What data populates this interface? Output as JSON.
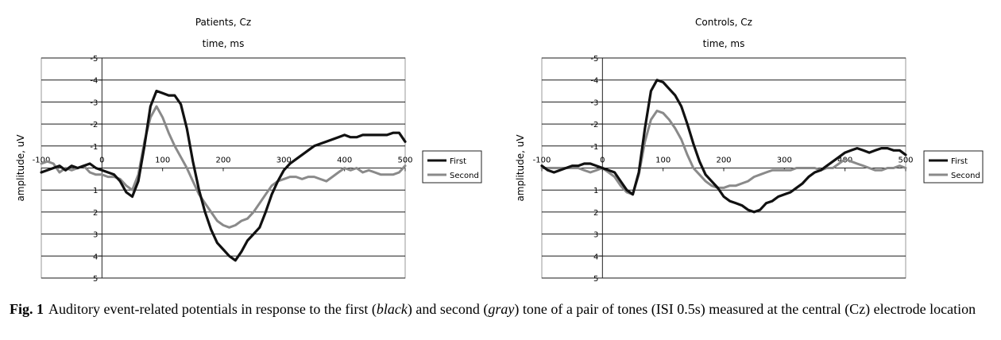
{
  "chart_data": [
    {
      "type": "line",
      "title": "Patients, Cz",
      "xlabel": "time, ms",
      "ylabel": "amplitude, uV",
      "xlim": [
        -100,
        500
      ],
      "ylim": [
        -5,
        5
      ],
      "y_inverted": true,
      "x_ticks": [
        -100,
        0,
        100,
        200,
        300,
        400,
        500
      ],
      "y_ticks": [
        -5,
        -4,
        -3,
        -2,
        -1,
        0,
        1,
        2,
        3,
        4,
        5
      ],
      "x_tick_labels": [
        "-100",
        "0",
        "100",
        "200",
        "300",
        "400",
        "500"
      ],
      "y_tick_labels": [
        "-5",
        "-4",
        "-3",
        "-2",
        "-1",
        "0",
        "1",
        "2",
        "3",
        "4",
        "5"
      ],
      "grid": "horizontal",
      "legend_position": "right",
      "series": [
        {
          "name": "First",
          "color": "#111111",
          "x": [
            -100,
            -90,
            -80,
            -70,
            -60,
            -50,
            -40,
            -30,
            -20,
            -10,
            0,
            10,
            20,
            30,
            40,
            50,
            60,
            70,
            80,
            90,
            100,
            110,
            120,
            130,
            140,
            150,
            160,
            170,
            180,
            190,
            200,
            210,
            220,
            230,
            240,
            250,
            260,
            270,
            280,
            290,
            300,
            310,
            320,
            330,
            340,
            350,
            360,
            370,
            380,
            390,
            400,
            410,
            420,
            430,
            440,
            450,
            460,
            470,
            480,
            490,
            500
          ],
          "y": [
            0.2,
            0.1,
            0,
            -0.1,
            0.1,
            -0.1,
            0,
            -0.1,
            -0.2,
            0,
            0.1,
            0.2,
            0.3,
            0.6,
            1.1,
            1.3,
            0.6,
            -1.0,
            -2.8,
            -3.5,
            -3.4,
            -3.3,
            -3.3,
            -2.9,
            -1.8,
            -0.3,
            1.0,
            2.0,
            2.8,
            3.4,
            3.7,
            4.0,
            4.2,
            3.8,
            3.3,
            3.0,
            2.7,
            2.0,
            1.2,
            0.6,
            0.1,
            -0.2,
            -0.4,
            -0.6,
            -0.8,
            -1.0,
            -1.1,
            -1.2,
            -1.3,
            -1.4,
            -1.5,
            -1.4,
            -1.4,
            -1.5,
            -1.5,
            -1.5,
            -1.5,
            -1.5,
            -1.6,
            -1.6,
            -1.2
          ]
        },
        {
          "name": "Second",
          "color": "#8a8a8a",
          "x": [
            -100,
            -90,
            -80,
            -70,
            -60,
            -50,
            -40,
            -30,
            -20,
            -10,
            0,
            10,
            20,
            30,
            40,
            50,
            60,
            70,
            80,
            90,
            100,
            110,
            120,
            130,
            140,
            150,
            160,
            170,
            180,
            190,
            200,
            210,
            220,
            230,
            240,
            250,
            260,
            270,
            280,
            290,
            300,
            310,
            320,
            330,
            340,
            350,
            360,
            370,
            380,
            390,
            400,
            410,
            420,
            430,
            440,
            450,
            460,
            470,
            480,
            490,
            500
          ],
          "y": [
            -0.2,
            -0.3,
            -0.2,
            0.2,
            0,
            0.1,
            0,
            -0.1,
            0.2,
            0.3,
            0.3,
            0.4,
            0.4,
            0.5,
            0.8,
            1.0,
            0.3,
            -1.2,
            -2.3,
            -2.8,
            -2.3,
            -1.6,
            -1.0,
            -0.5,
            0,
            0.6,
            1.2,
            1.6,
            2.0,
            2.4,
            2.6,
            2.7,
            2.6,
            2.4,
            2.3,
            2.0,
            1.6,
            1.2,
            0.8,
            0.6,
            0.5,
            0.4,
            0.4,
            0.5,
            0.4,
            0.4,
            0.5,
            0.6,
            0.4,
            0.2,
            0,
            0.1,
            0,
            0.2,
            0.1,
            0.2,
            0.3,
            0.3,
            0.3,
            0.2,
            -0.1
          ]
        }
      ]
    },
    {
      "type": "line",
      "title": "Controls, Cz",
      "xlabel": "time, ms",
      "ylabel": "amplitude, uV",
      "xlim": [
        -100,
        500
      ],
      "ylim": [
        -5,
        5
      ],
      "y_inverted": true,
      "x_ticks": [
        -100,
        0,
        100,
        200,
        300,
        400,
        500
      ],
      "y_ticks": [
        -5,
        -4,
        -3,
        -2,
        -1,
        0,
        1,
        2,
        3,
        4,
        5
      ],
      "x_tick_labels": [
        "-100",
        "0",
        "100",
        "200",
        "300",
        "400",
        "500"
      ],
      "y_tick_labels": [
        "-5",
        "-4",
        "-3",
        "-2",
        "-1",
        "0",
        "1",
        "2",
        "3",
        "4",
        "5"
      ],
      "grid": "horizontal",
      "legend_position": "right",
      "series": [
        {
          "name": "First",
          "color": "#111111",
          "x": [
            -100,
            -90,
            -80,
            -70,
            -60,
            -50,
            -40,
            -30,
            -20,
            -10,
            0,
            10,
            20,
            30,
            40,
            50,
            60,
            70,
            80,
            90,
            100,
            110,
            120,
            130,
            140,
            150,
            160,
            170,
            180,
            190,
            200,
            210,
            220,
            230,
            240,
            250,
            260,
            270,
            280,
            290,
            300,
            310,
            320,
            330,
            340,
            350,
            360,
            370,
            380,
            390,
            400,
            410,
            420,
            430,
            440,
            450,
            460,
            470,
            480,
            490,
            500
          ],
          "y": [
            -0.1,
            0.1,
            0.2,
            0.1,
            0,
            -0.1,
            -0.1,
            -0.2,
            -0.2,
            -0.1,
            0,
            0.1,
            0.2,
            0.6,
            1.0,
            1.2,
            0.2,
            -1.8,
            -3.5,
            -4.0,
            -3.9,
            -3.6,
            -3.3,
            -2.8,
            -2.0,
            -1.1,
            -0.3,
            0.3,
            0.6,
            0.9,
            1.3,
            1.5,
            1.6,
            1.7,
            1.9,
            2.0,
            1.9,
            1.6,
            1.5,
            1.3,
            1.2,
            1.1,
            0.9,
            0.7,
            0.4,
            0.2,
            0.1,
            -0.1,
            -0.3,
            -0.5,
            -0.7,
            -0.8,
            -0.9,
            -0.8,
            -0.7,
            -0.8,
            -0.9,
            -0.9,
            -0.8,
            -0.8,
            -0.6
          ]
        },
        {
          "name": "Second",
          "color": "#8a8a8a",
          "x": [
            -100,
            -90,
            -80,
            -70,
            -60,
            -50,
            -40,
            -30,
            -20,
            -10,
            0,
            10,
            20,
            30,
            40,
            50,
            60,
            70,
            80,
            90,
            100,
            110,
            120,
            130,
            140,
            150,
            160,
            170,
            180,
            190,
            200,
            210,
            220,
            230,
            240,
            250,
            260,
            270,
            280,
            290,
            300,
            310,
            320,
            330,
            340,
            350,
            360,
            370,
            380,
            390,
            400,
            410,
            420,
            430,
            440,
            450,
            460,
            470,
            480,
            490,
            500
          ],
          "y": [
            0,
            0,
            0,
            0,
            0,
            0,
            0,
            0.1,
            0.2,
            0.1,
            0,
            0.2,
            0.4,
            0.8,
            1.1,
            1.2,
            0.3,
            -1.2,
            -2.2,
            -2.6,
            -2.5,
            -2.2,
            -1.8,
            -1.3,
            -0.6,
            0,
            0.3,
            0.6,
            0.8,
            0.9,
            0.9,
            0.8,
            0.8,
            0.7,
            0.6,
            0.4,
            0.3,
            0.2,
            0.1,
            0.1,
            0.1,
            0.1,
            0,
            0,
            0,
            0,
            0.1,
            0,
            0,
            -0.2,
            -0.4,
            -0.3,
            -0.2,
            -0.1,
            0,
            0.1,
            0.1,
            0,
            0,
            -0.1,
            0
          ]
        }
      ]
    }
  ],
  "caption": {
    "label": "Fig. 1",
    "text_before_black": "Auditory event-related potentials in response to the first (",
    "black_word": "black",
    "text_before_gray": ") and second (",
    "gray_word": "gray",
    "text_after": ") tone of a pair of tones (ISI 0.5s) measured at the central (Cz) electrode location"
  }
}
